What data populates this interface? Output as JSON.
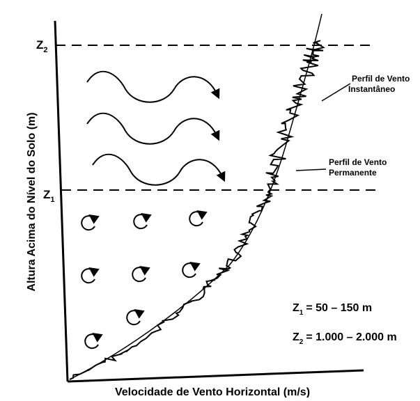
{
  "diagram": {
    "y_axis_label": "Altura Acima do Nível do Solo (m)",
    "x_axis_label": "Velocidade de Vento Horizontal (m/s)",
    "levels": [
      {
        "symbol": "Z",
        "subscript": "2"
      },
      {
        "symbol": "Z",
        "subscript": "1"
      }
    ],
    "annotations": [
      {
        "lines": [
          "Perfil de Vento",
          "Instantâneo"
        ]
      },
      {
        "lines": [
          "Perfil de Vento",
          "Permanente"
        ]
      }
    ],
    "legend": [
      {
        "symbol": "Z",
        "subscript": "1",
        "text": "= 50 – 150 m"
      },
      {
        "symbol": "Z",
        "subscript": "2",
        "text": "= 1.000 – 2.000 m"
      }
    ]
  }
}
